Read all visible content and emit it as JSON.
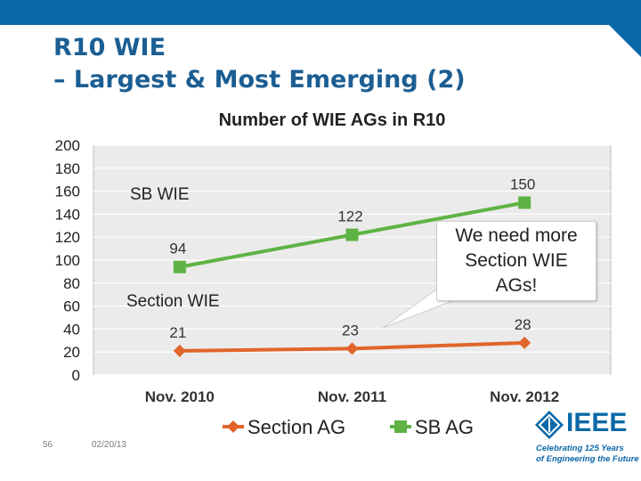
{
  "slide": {
    "title_line1": "R10 WIE",
    "title_line2": "– Largest & Most Emerging (2)",
    "page_number": "56",
    "date": "02/20/13"
  },
  "annotations": {
    "sb_wie": "SB WIE",
    "section_wie": "Section WIE",
    "callout": "We need more Section WIE AGs!"
  },
  "logo": {
    "word": "IEEE",
    "tagline_line1": "Celebrating 125 Years",
    "tagline_line2": "of Engineering the Future"
  },
  "colors": {
    "title": "#1b5e93",
    "section_series": "#e0652a",
    "sb_series": "#5fb344",
    "brand_blue": "#0a68a8"
  },
  "chart_data": {
    "type": "line",
    "title": "Number of WIE AGs in R10",
    "categories": [
      "Nov. 2010",
      "Nov. 2011",
      "Nov. 2012"
    ],
    "series": [
      {
        "name": "Section AG",
        "values": [
          21,
          23,
          28
        ],
        "color": "#e0652a",
        "marker": "diamond"
      },
      {
        "name": "SB AG",
        "values": [
          94,
          122,
          150
        ],
        "color": "#5fb344",
        "marker": "square"
      }
    ],
    "ylim": [
      0,
      200
    ],
    "yticks": [
      "0",
      "20",
      "40",
      "60",
      "80",
      "100",
      "120",
      "140",
      "160",
      "180",
      "200"
    ],
    "grid": true,
    "legend": "bottom"
  }
}
